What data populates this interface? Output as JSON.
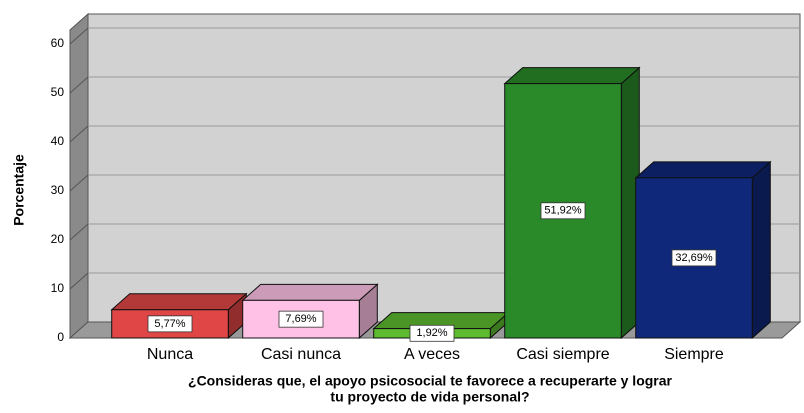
{
  "chart_data": {
    "type": "bar3d",
    "ylabel": "Porcentaje",
    "xlabel": [
      "¿Consideras que, el apoyo psicosocial te favorece a recuperarte y lograr",
      "tu proyecto de vida personal?"
    ],
    "categories": [
      "Nunca",
      "Casi nunca",
      "A veces",
      "Casi siempre",
      "Siempre"
    ],
    "values": [
      5.77,
      7.69,
      1.92,
      51.92,
      32.69
    ],
    "value_labels": [
      "5,77%",
      "7,69%",
      "1,92%",
      "51,92%",
      "32,69%"
    ],
    "colors": [
      "#e04646",
      "#ffc2e6",
      "#5dbb2f",
      "#2a8a2a",
      "#10287a"
    ],
    "ylim": [
      0,
      60
    ],
    "yticks": [
      0,
      10,
      20,
      30,
      40,
      50,
      60
    ],
    "grid": true
  }
}
